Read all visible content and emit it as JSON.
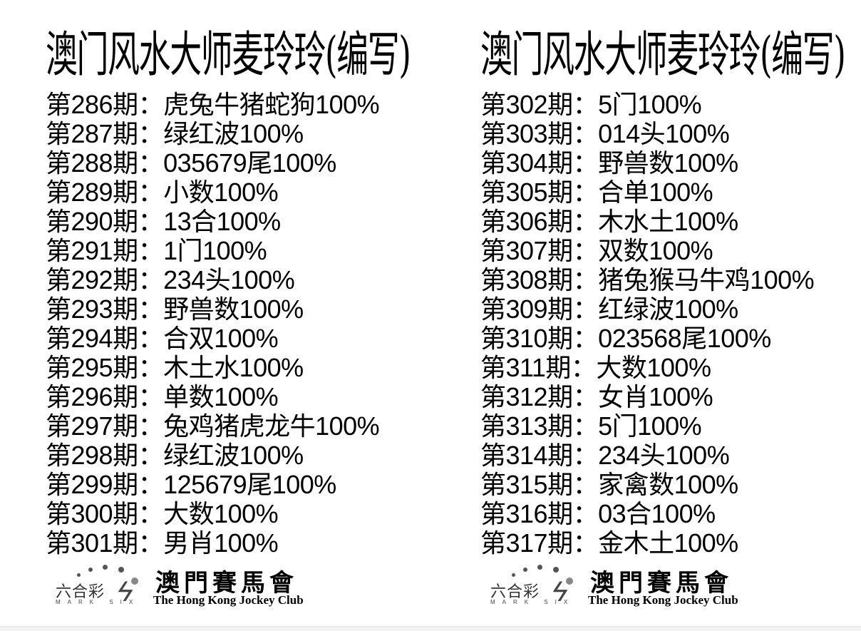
{
  "left": {
    "title": "澳门风水大师麦玲玲(编写)",
    "rows": [
      "第286期：虎兔牛猪蛇狗100%",
      "第287期：绿红波100%",
      "第288期：035679尾100%",
      "第289期：小数100%",
      "第290期：13合100%",
      "第291期：1门100%",
      "第292期：234头100%",
      "第293期：野兽数100%",
      "第294期：合双100%",
      "第295期：木土水100%",
      "第296期：单数100%",
      "第297期：兔鸡猪虎龙牛100%",
      "第298期：绿红波100%",
      "第299期：125679尾100%",
      "第300期：大数100%",
      "第301期：男肖100%"
    ]
  },
  "right": {
    "title": "澳门风水大师麦玲玲(编写)",
    "rows": [
      "第302期：5门100%",
      "第303期：014头100%",
      "第304期：野兽数100%",
      "第305期：合单100%",
      "第306期：木水土100%",
      "第307期：双数100%",
      "第308期：猪兔猴马牛鸡100%",
      "第309期：红绿波100%",
      "第310期：023568尾100%",
      "第311期：大数100%",
      "第312期：女肖100%",
      "第313期：5门100%",
      "第314期：234头100%",
      "第315期：家禽数100%",
      "第316期：03合100%",
      "第317期：金木土100%"
    ]
  },
  "logo": {
    "six_label": "六合彩",
    "mark_six": "MARK SIX",
    "club_cn": "澳門賽馬會",
    "club_en": "The Hong Kong Jockey Club"
  }
}
